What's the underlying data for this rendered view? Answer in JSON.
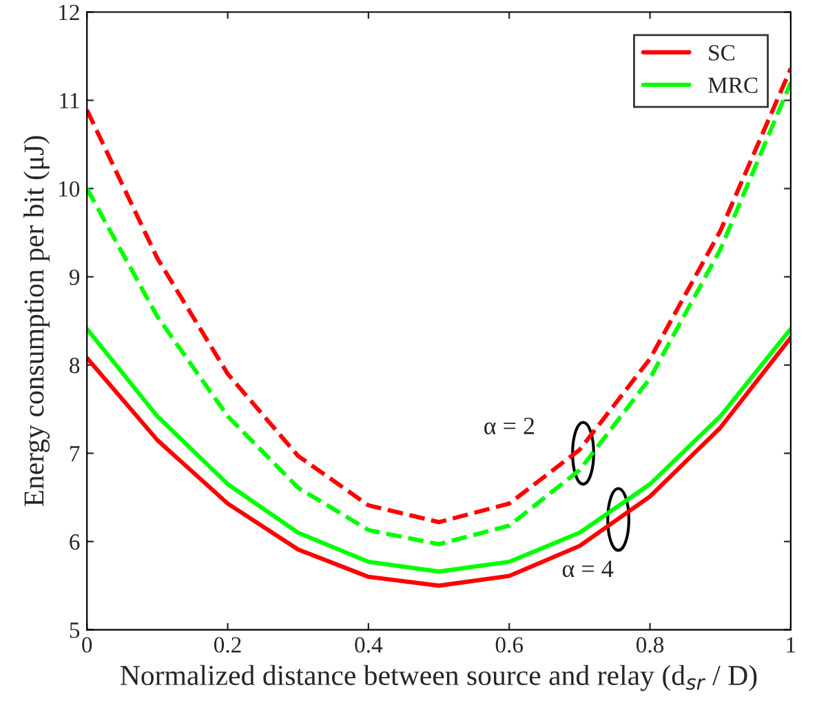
{
  "chart_data": {
    "type": "line",
    "xlabel": "Normalized distance between source and relay (d$_{sr}$ / D)",
    "ylabel": "Energy consumption per bit (μJ)",
    "x": [
      0,
      0.1,
      0.2,
      0.3,
      0.4,
      0.5,
      0.6,
      0.7,
      0.8,
      0.9,
      1
    ],
    "series": [
      {
        "name": "SC",
        "color": "#ff0000",
        "line_style": "solid",
        "values": [
          8.08,
          7.15,
          6.43,
          5.91,
          5.6,
          5.5,
          5.61,
          5.95,
          6.51,
          7.29,
          8.31
        ]
      },
      {
        "name": "MRC",
        "color": "#00ff00",
        "line_style": "solid",
        "values": [
          8.41,
          7.42,
          6.65,
          6.1,
          5.77,
          5.66,
          5.77,
          6.1,
          6.65,
          7.42,
          8.41
        ]
      },
      {
        "color": "#ff0000",
        "line_style": "dashed",
        "values": [
          10.89,
          9.21,
          7.9,
          6.97,
          6.41,
          6.22,
          6.43,
          7.04,
          8.07,
          9.52,
          11.36
        ]
      },
      {
        "color": "#00ff00",
        "line_style": "dashed",
        "values": [
          10.0,
          8.55,
          7.42,
          6.61,
          6.13,
          5.97,
          6.18,
          6.81,
          7.85,
          9.31,
          11.2
        ]
      }
    ],
    "xlim": [
      0,
      1
    ],
    "xticks": [
      0,
      0.2,
      0.4,
      0.6,
      0.8,
      1
    ],
    "ylim": [
      5,
      12
    ],
    "yticks": [
      5,
      6,
      7,
      8,
      9,
      10,
      11,
      12
    ],
    "grid": false,
    "legend": "top right",
    "annotations": [
      {
        "text": "α = 2",
        "x": 0.705,
        "y": 7.0
      },
      {
        "text": "α = 4",
        "x": 0.755,
        "y": 6.25
      }
    ]
  }
}
